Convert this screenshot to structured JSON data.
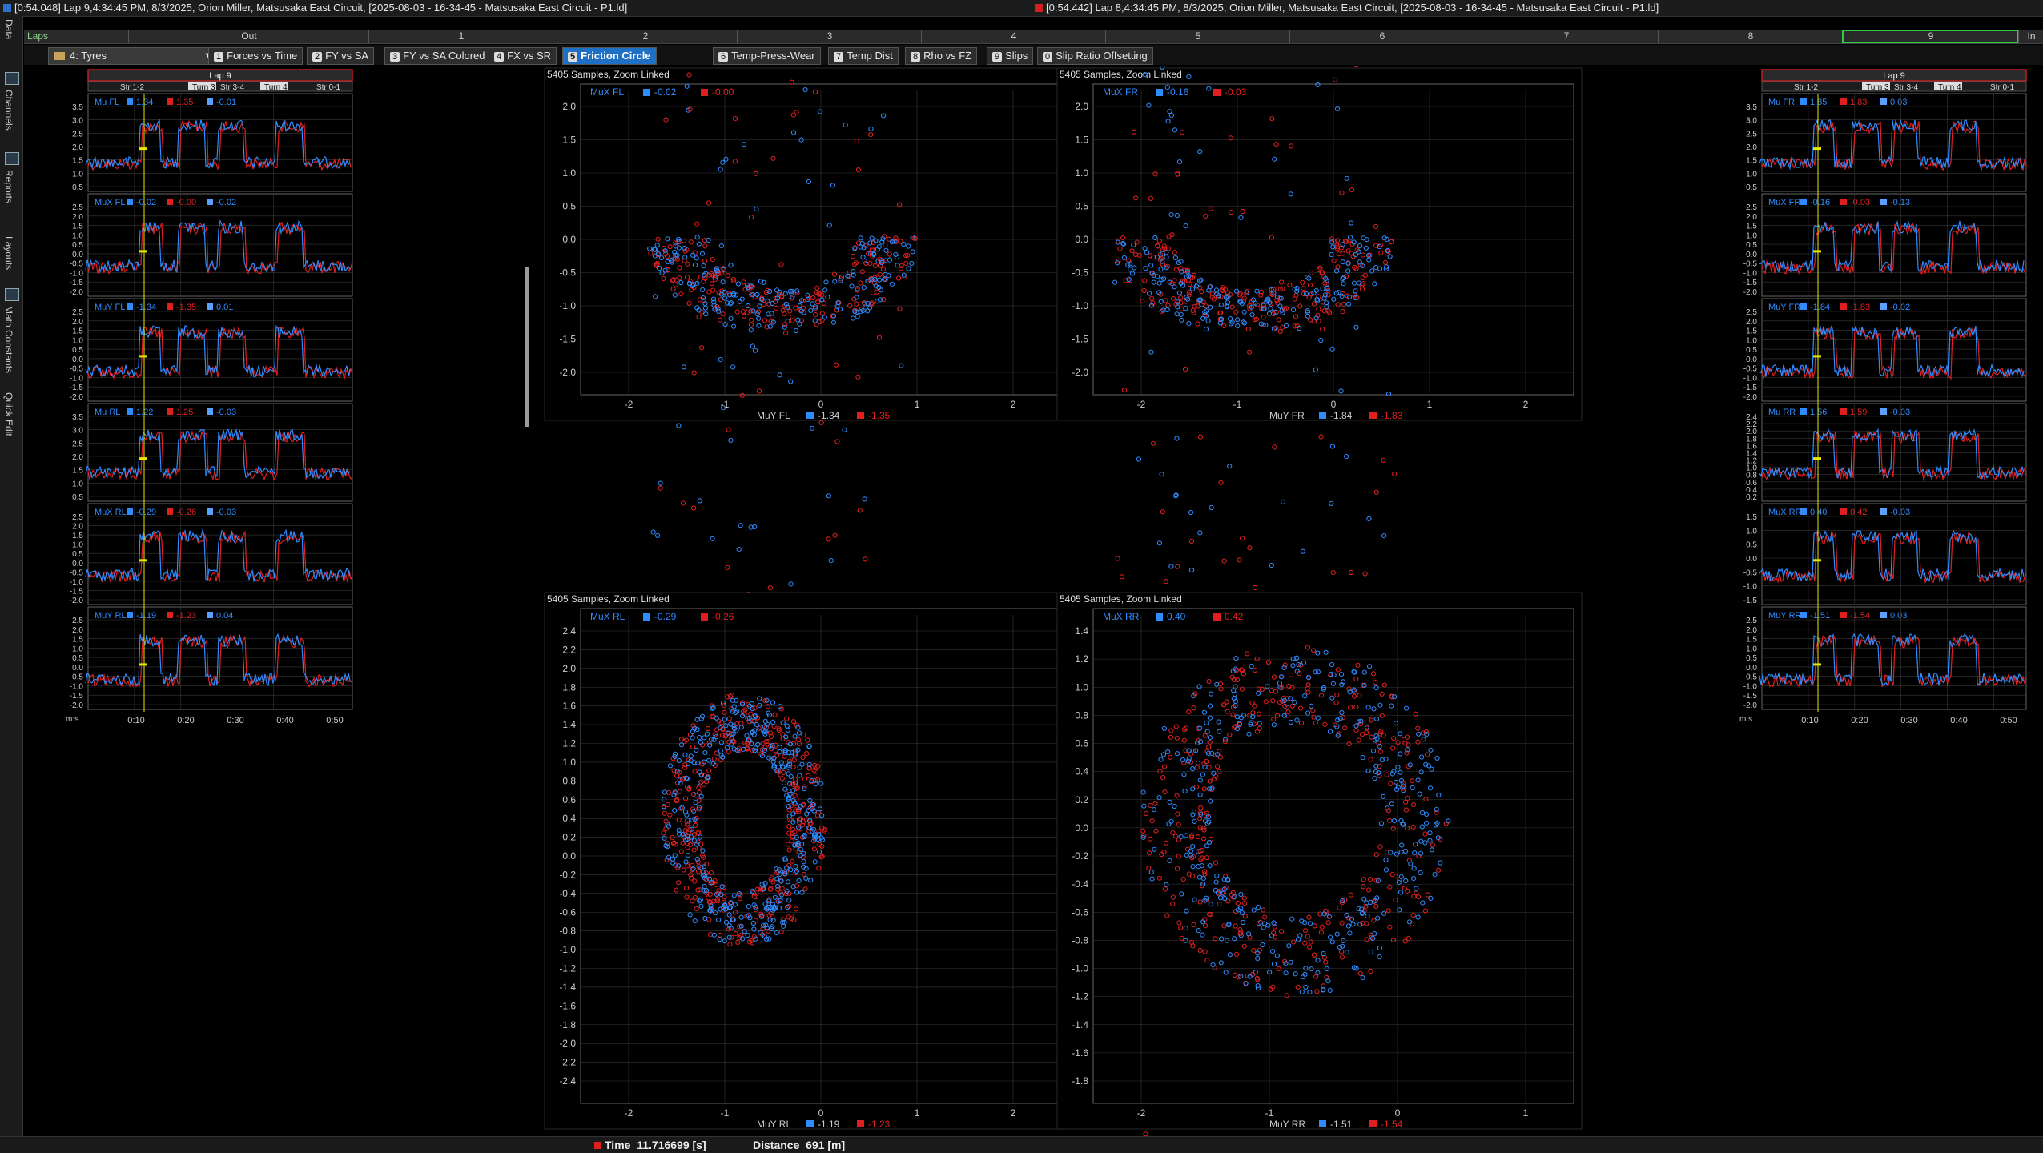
{
  "titlebar": {
    "left": "[0:54.048] Lap 9,4:34:45 PM, 8/3/2025,  Orion Miller, Matsusaka East Circuit,  [2025-08-03 - 16-34-45 - Matsusaka East Circuit - P1.ld]",
    "right": "[0:54.442] Lap 8,4:34:45 PM, 8/3/2025,  Orion Miller, Matsusaka East Circuit,  [2025-08-03 - 16-34-45 - Matsusaka East Circuit - P1.ld]"
  },
  "lapbar": {
    "label": "Laps",
    "cells": [
      "Out",
      "1",
      "2",
      "3",
      "4",
      "5",
      "6",
      "7",
      "8",
      "9",
      "In"
    ]
  },
  "toolbar": {
    "workbook": "4: Tyres",
    "tabs": [
      {
        "num": "1",
        "label": "Forces vs Time"
      },
      {
        "num": "2",
        "label": "FY vs SA"
      },
      {
        "num": "3",
        "label": "FY vs SA Colored"
      },
      {
        "num": "4",
        "label": "FX vs SR"
      },
      {
        "num": "5",
        "label": "Friction Circle"
      },
      {
        "num": "6",
        "label": "Temp-Press-Wear"
      },
      {
        "num": "7",
        "label": "Temp Dist"
      },
      {
        "num": "8",
        "label": "Rho vs FZ"
      },
      {
        "num": "9",
        "label": "Slips"
      },
      {
        "num": "0",
        "label": "Slip Ratio Offsetting"
      }
    ]
  },
  "sidebar": {
    "labels": [
      "Data",
      "Channels",
      "Reports",
      "Layouts",
      "Math Constants",
      "Quick Edit"
    ]
  },
  "colors": {
    "blue": "#2f8cff",
    "red": "#e02020",
    "yellow": "#e8e800",
    "bg": "#000000",
    "grid": "#3a3a3a",
    "header": "#2a2a2a"
  },
  "left_panel": {
    "lap_title": "Lap 9",
    "sectors": [
      "Str 1-2",
      "Turn 3",
      "Str 3-4",
      "Turn 4",
      "Str 0-1"
    ],
    "x_unit": "m:s",
    "x_ticks": [
      "0:10",
      "0:20",
      "0:30",
      "0:40",
      "0:50"
    ],
    "channels": [
      {
        "name": "Mu FL",
        "blue": "1.34",
        "red": "1.35",
        "delta": "-0.01",
        "ticks": [
          "3.5",
          "3.0",
          "2.5",
          "2.0",
          "1.5",
          "1.0",
          "0.5"
        ]
      },
      {
        "name": "MuX FL",
        "blue": "-0.02",
        "red": "-0.00",
        "delta": "-0.02",
        "ticks": [
          "2.5",
          "2.0",
          "1.5",
          "1.0",
          "0.5",
          "0.0",
          "-0.5",
          "-1.0",
          "-1.5",
          "-2.0"
        ]
      },
      {
        "name": "MuY FL",
        "blue": "-1.34",
        "red": "-1.35",
        "delta": "0.01",
        "ticks": [
          "2.5",
          "2.0",
          "1.5",
          "1.0",
          "0.5",
          "0.0",
          "-0.5",
          "-1.0",
          "-1.5",
          "-2.0"
        ]
      },
      {
        "name": "Mu RL",
        "blue": "1.22",
        "red": "1.25",
        "delta": "-0.03",
        "ticks": [
          "3.5",
          "3.0",
          "2.5",
          "2.0",
          "1.5",
          "1.0",
          "0.5"
        ]
      },
      {
        "name": "MuX RL",
        "blue": "-0.29",
        "red": "-0.26",
        "delta": "-0.03",
        "ticks": [
          "2.5",
          "2.0",
          "1.5",
          "1.0",
          "0.5",
          "0.0",
          "-0.5",
          "-1.0",
          "-1.5",
          "-2.0"
        ]
      },
      {
        "name": "MuY RL",
        "blue": "-1.19",
        "red": "-1.23",
        "delta": "0.04",
        "ticks": [
          "2.5",
          "2.0",
          "1.5",
          "1.0",
          "0.5",
          "0.0",
          "-0.5",
          "-1.0",
          "-1.5",
          "-2.0"
        ]
      }
    ]
  },
  "right_panel": {
    "lap_title": "Lap 9",
    "sectors": [
      "Str 1-2",
      "Turn 3",
      "Str 3-4",
      "Turn 4",
      "Str 0-1"
    ],
    "x_unit": "m:s",
    "x_ticks": [
      "0:10",
      "0:20",
      "0:30",
      "0:40",
      "0:50"
    ],
    "channels": [
      {
        "name": "Mu FR",
        "blue": "1.85",
        "red": "1.83",
        "delta": "0.03",
        "ticks": [
          "3.5",
          "3.0",
          "2.5",
          "2.0",
          "1.5",
          "1.0",
          "0.5"
        ]
      },
      {
        "name": "MuX FR",
        "blue": "-0.16",
        "red": "-0.03",
        "delta": "-0.13",
        "ticks": [
          "2.5",
          "2.0",
          "1.5",
          "1.0",
          "0.5",
          "0.0",
          "-0.5",
          "-1.0",
          "-1.5",
          "-2.0"
        ]
      },
      {
        "name": "MuY FR",
        "blue": "-1.84",
        "red": "-1.83",
        "delta": "-0.02",
        "ticks": [
          "2.5",
          "2.0",
          "1.5",
          "1.0",
          "0.5",
          "0.0",
          "-0.5",
          "-1.0",
          "-1.5",
          "-2.0"
        ]
      },
      {
        "name": "Mu RR",
        "blue": "1.56",
        "red": "1.59",
        "delta": "-0.03",
        "ticks": [
          "2.4",
          "2.2",
          "2.0",
          "1.8",
          "1.6",
          "1.4",
          "1.2",
          "1.0",
          "0.8",
          "0.6",
          "0.4",
          "0.2"
        ]
      },
      {
        "name": "MuX RR",
        "blue": "0.40",
        "red": "0.42",
        "delta": "-0.03",
        "ticks": [
          "1.5",
          "1.0",
          "0.5",
          "0.0",
          "-0.5",
          "-1.0",
          "-1.5"
        ]
      },
      {
        "name": "MuY RR",
        "blue": "-1.51",
        "red": "-1.54",
        "delta": "0.03",
        "ticks": [
          "2.5",
          "2.0",
          "1.5",
          "1.0",
          "0.5",
          "0.0",
          "-0.5",
          "-1.0",
          "-1.5",
          "-2.0"
        ]
      }
    ]
  },
  "scatter_plots": [
    {
      "id": "fl",
      "header": "5405 Samples, Zoom Linked",
      "y_name": "MuX FL",
      "y_blue": "-0.02",
      "y_red": "-0.00",
      "x_name": "MuY FL",
      "x_blue": "-1.34",
      "x_red": "-1.35",
      "x_ticks": [
        "-2",
        "-1",
        "0",
        "1",
        "2"
      ],
      "y_ticks": [
        "2.0",
        "1.5",
        "1.0",
        "0.5",
        "0.0",
        "-0.5",
        "-1.0",
        "-1.5",
        "-2.0"
      ]
    },
    {
      "id": "fr",
      "header": "5405 Samples, Zoom Linked",
      "y_name": "MuX FR",
      "y_blue": "-0.16",
      "y_red": "-0.03",
      "x_name": "MuY FR",
      "x_blue": "-1.84",
      "x_red": "-1.83",
      "x_ticks": [
        "-2",
        "-1",
        "0",
        "1",
        "2"
      ],
      "y_ticks": [
        "2.0",
        "1.5",
        "1.0",
        "0.5",
        "0.0",
        "-0.5",
        "-1.0",
        "-1.5",
        "-2.0"
      ]
    },
    {
      "id": "rl",
      "header": "5405 Samples, Zoom Linked",
      "y_name": "MuX RL",
      "y_blue": "-0.29",
      "y_red": "-0.26",
      "x_name": "MuY RL",
      "x_blue": "-1.19",
      "x_red": "-1.23",
      "x_ticks": [
        "-2",
        "-1",
        "0",
        "1",
        "2"
      ],
      "y_ticks": [
        "2.4",
        "2.2",
        "2.0",
        "1.8",
        "1.6",
        "1.4",
        "1.2",
        "1.0",
        "0.8",
        "0.6",
        "0.4",
        "0.2",
        "0.0",
        "-0.2",
        "-0.4",
        "-0.6",
        "-0.8",
        "-1.0",
        "-1.2",
        "-1.4",
        "-1.6",
        "-1.8",
        "-2.0",
        "-2.2",
        "-2.4"
      ]
    },
    {
      "id": "rr",
      "header": "5405 Samples, Zoom Linked",
      "y_name": "MuX RR",
      "y_blue": "0.40",
      "y_red": "0.42",
      "x_name": "MuY RR",
      "x_blue": "-1.51",
      "x_red": "-1.54",
      "x_ticks": [
        "-2",
        "-1",
        "0",
        "1"
      ],
      "y_ticks": [
        "1.4",
        "1.2",
        "1.0",
        "0.8",
        "0.6",
        "0.4",
        "0.2",
        "0.0",
        "-0.2",
        "-0.4",
        "-0.6",
        "-0.8",
        "-1.0",
        "-1.2",
        "-1.4",
        "-1.6",
        "-1.8"
      ]
    }
  ],
  "status": {
    "time_label": "Time",
    "time_value": "11.716699 [s]",
    "dist_label": "Distance",
    "dist_value": "691 [m]"
  }
}
